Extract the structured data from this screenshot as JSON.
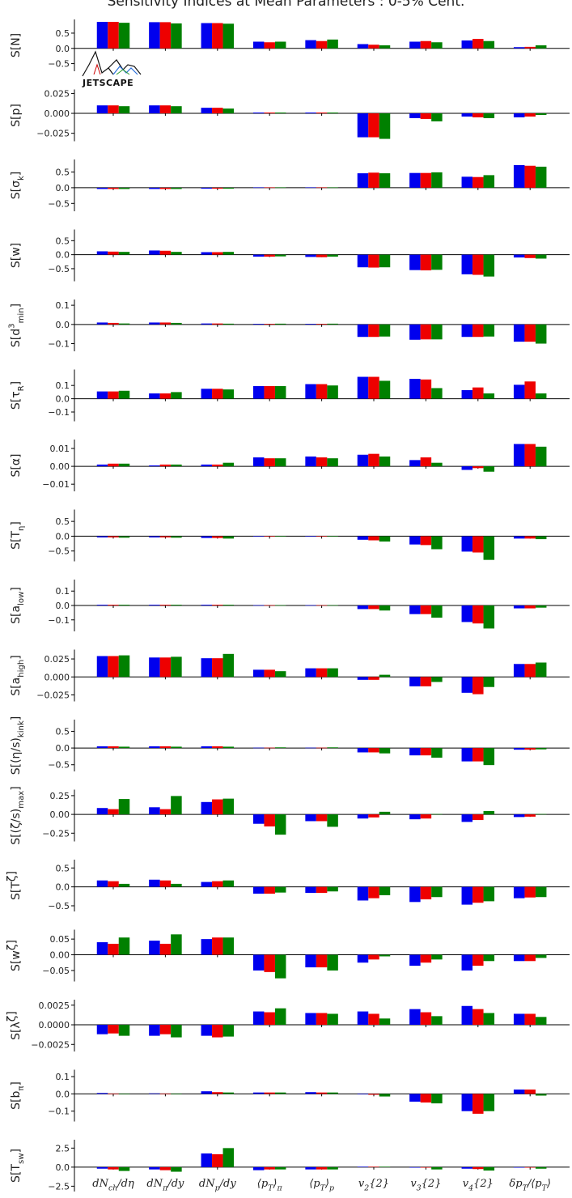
{
  "title": "Sensitivity Indices at Mean Parameters : 0-5% Cent.",
  "logo_text": "JETSCAPE",
  "colors": {
    "series1": "#0000ee",
    "series2": "#ee0000",
    "series3": "#008000",
    "axis": "#000000"
  },
  "chart_data": {
    "type": "bar",
    "categories": [
      "dN_{ch}/dη",
      "dN_π/dy",
      "dN_p/dy",
      "⟨p_T⟩_π",
      "⟨p_T⟩_p",
      "v_2{2}",
      "v_3{2}",
      "v_4{2}",
      "δp_T/⟨p_T⟩"
    ],
    "category_labels": [
      "dNch/dη",
      "dNπ/dy",
      "dNp/dy",
      "⟨pT⟩π",
      "⟨pT⟩p",
      "v2{2}",
      "v3{2}",
      "v4{2}",
      "δpT/⟨pT⟩"
    ],
    "panels": [
      {
        "ylabel": "S[N]",
        "ylim": [
          -0.75,
          0.95
        ],
        "yticks": [
          0.5,
          0.0,
          -0.5
        ],
        "ytick_labels": [
          "0.5",
          "0.0",
          "−0.5"
        ],
        "series": [
          [
            0.87,
            0.86,
            0.83,
            0.22,
            0.27,
            0.14,
            0.22,
            0.26,
            0.04
          ],
          [
            0.87,
            0.86,
            0.83,
            0.2,
            0.24,
            0.12,
            0.24,
            0.31,
            0.05
          ],
          [
            0.84,
            0.82,
            0.81,
            0.22,
            0.29,
            0.1,
            0.2,
            0.24,
            0.1
          ]
        ]
      },
      {
        "ylabel": "S[p]",
        "ylim": [
          -0.035,
          0.03
        ],
        "yticks": [
          0.025,
          0.0,
          -0.025
        ],
        "ytick_labels": [
          "0.025",
          "0.000",
          "−0.025"
        ],
        "series": [
          [
            0.01,
            0.01,
            0.007,
            0.001,
            0.001,
            -0.03,
            -0.006,
            -0.004,
            -0.005
          ],
          [
            0.01,
            0.01,
            0.007,
            0.001,
            0.001,
            -0.03,
            -0.007,
            -0.005,
            -0.004
          ],
          [
            0.009,
            0.009,
            0.006,
            0.001,
            0.001,
            -0.032,
            -0.01,
            -0.006,
            -0.002
          ]
        ]
      },
      {
        "ylabel": "S[σ_k]",
        "ylim": [
          -0.75,
          0.9
        ],
        "yticks": [
          0.5,
          0.0,
          -0.5
        ],
        "ytick_labels": [
          "0.5",
          "0.0",
          "−0.5"
        ],
        "series": [
          [
            -0.04,
            -0.04,
            -0.03,
            0.01,
            0.01,
            0.46,
            0.47,
            0.35,
            0.72
          ],
          [
            -0.04,
            -0.04,
            -0.03,
            0.01,
            0.01,
            0.48,
            0.47,
            0.34,
            0.7
          ],
          [
            -0.04,
            -0.04,
            -0.03,
            0.01,
            0.01,
            0.46,
            0.49,
            0.4,
            0.67
          ]
        ]
      },
      {
        "ylabel": "S[w]",
        "ylim": [
          -0.95,
          0.9
        ],
        "yticks": [
          0.5,
          0.0,
          -0.5
        ],
        "ytick_labels": [
          "0.5",
          "0.0",
          "−0.5"
        ],
        "series": [
          [
            0.12,
            0.15,
            0.09,
            -0.07,
            -0.08,
            -0.45,
            -0.55,
            -0.7,
            -0.1
          ],
          [
            0.11,
            0.14,
            0.09,
            -0.07,
            -0.09,
            -0.46,
            -0.56,
            -0.72,
            -0.12
          ],
          [
            0.1,
            0.1,
            0.1,
            -0.06,
            -0.07,
            -0.45,
            -0.54,
            -0.78,
            -0.14
          ]
        ]
      },
      {
        "ylabel": "S[d^3_min]",
        "ylim": [
          -0.14,
          0.13
        ],
        "yticks": [
          0.1,
          0.0,
          -0.1
        ],
        "ytick_labels": [
          "0.1",
          "0.0",
          "−0.1"
        ],
        "series": [
          [
            0.01,
            0.01,
            0.005,
            0.003,
            0.003,
            -0.065,
            -0.08,
            -0.065,
            -0.09
          ],
          [
            0.008,
            0.01,
            0.005,
            0.003,
            0.003,
            -0.065,
            -0.078,
            -0.065,
            -0.09
          ],
          [
            0.005,
            0.008,
            0.004,
            0.004,
            0.004,
            -0.063,
            -0.078,
            -0.063,
            -0.1
          ]
        ]
      },
      {
        "ylabel": "S[τ_R]",
        "ylim": [
          -0.17,
          0.22
        ],
        "yticks": [
          0.1,
          0.0,
          -0.1
        ],
        "ytick_labels": [
          "0.1",
          "0.0",
          "−0.1"
        ],
        "series": [
          [
            0.055,
            0.04,
            0.075,
            0.095,
            0.11,
            0.165,
            0.15,
            0.065,
            0.105
          ],
          [
            0.055,
            0.04,
            0.075,
            0.095,
            0.11,
            0.165,
            0.145,
            0.085,
            0.13
          ],
          [
            0.06,
            0.05,
            0.07,
            0.095,
            0.1,
            0.135,
            0.08,
            0.04,
            0.04
          ]
        ]
      },
      {
        "ylabel": "S[α]",
        "ylim": [
          -0.014,
          0.015
        ],
        "yticks": [
          0.01,
          0.0,
          -0.01
        ],
        "ytick_labels": [
          "0.01",
          "0.00",
          "−0.01"
        ],
        "series": [
          [
            0.001,
            0.0005,
            0.001,
            0.005,
            0.0055,
            0.0065,
            0.0035,
            -0.002,
            0.0125
          ],
          [
            0.0015,
            0.001,
            0.001,
            0.0045,
            0.005,
            0.007,
            0.005,
            -0.001,
            0.0125
          ],
          [
            0.0015,
            0.001,
            0.002,
            0.0045,
            0.0045,
            0.0055,
            0.002,
            -0.003,
            0.011
          ]
        ]
      },
      {
        "ylabel": "S[T_η]",
        "ylim": [
          -0.85,
          0.9
        ],
        "yticks": [
          0.5,
          0.0,
          -0.5
        ],
        "ytick_labels": [
          "0.5",
          "0.0",
          "−0.5"
        ],
        "series": [
          [
            -0.04,
            -0.04,
            -0.06,
            0.01,
            0.01,
            -0.12,
            -0.28,
            -0.52,
            -0.08
          ],
          [
            -0.04,
            -0.04,
            -0.06,
            0.01,
            0.01,
            -0.14,
            -0.3,
            -0.55,
            -0.08
          ],
          [
            -0.05,
            -0.05,
            -0.08,
            0.01,
            0.01,
            -0.18,
            -0.44,
            -0.8,
            -0.1
          ]
        ]
      },
      {
        "ylabel": "S[a_low]",
        "ylim": [
          -0.18,
          0.18
        ],
        "yticks": [
          0.1,
          0.0,
          -0.1
        ],
        "ytick_labels": [
          "0.1",
          "0.0",
          "−0.1"
        ],
        "series": [
          [
            0.005,
            0.005,
            0.005,
            0.002,
            0.002,
            -0.025,
            -0.06,
            -0.115,
            -0.02
          ],
          [
            0.005,
            0.005,
            0.005,
            0.002,
            0.002,
            -0.025,
            -0.06,
            -0.125,
            -0.02
          ],
          [
            0.005,
            0.005,
            0.005,
            0.002,
            0.002,
            -0.035,
            -0.085,
            -0.16,
            -0.015
          ]
        ]
      },
      {
        "ylabel": "S[a_high]",
        "ylim": [
          -0.034,
          0.038
        ],
        "yticks": [
          0.025,
          0.0,
          -0.025
        ],
        "ytick_labels": [
          "0.025",
          "0.000",
          "−0.025"
        ],
        "series": [
          [
            0.029,
            0.027,
            0.026,
            0.01,
            0.012,
            -0.004,
            -0.013,
            -0.022,
            0.018
          ],
          [
            0.029,
            0.027,
            0.026,
            0.01,
            0.012,
            -0.004,
            -0.013,
            -0.024,
            0.018
          ],
          [
            0.03,
            0.028,
            0.032,
            0.008,
            0.012,
            0.003,
            -0.007,
            -0.014,
            0.02
          ]
        ]
      },
      {
        "ylabel": "S[(η/s)_kink]",
        "ylim": [
          -0.7,
          0.85
        ],
        "yticks": [
          0.5,
          0.0,
          -0.5
        ],
        "ytick_labels": [
          "0.5",
          "0.0",
          "−0.5"
        ],
        "series": [
          [
            0.05,
            0.05,
            0.05,
            0.01,
            0.01,
            -0.13,
            -0.22,
            -0.4,
            -0.05
          ],
          [
            0.05,
            0.05,
            0.05,
            0.01,
            0.01,
            -0.13,
            -0.22,
            -0.4,
            -0.05
          ],
          [
            0.04,
            0.04,
            0.04,
            0.02,
            0.02,
            -0.16,
            -0.29,
            -0.51,
            -0.04
          ]
        ]
      },
      {
        "ylabel": "S[(ζ/s)_max]",
        "ylim": [
          -0.36,
          0.33
        ],
        "yticks": [
          0.25,
          0.0,
          -0.25
        ],
        "ytick_labels": [
          "0.25",
          "0.00",
          "−0.25"
        ],
        "series": [
          [
            0.085,
            0.095,
            0.165,
            -0.125,
            -0.09,
            -0.055,
            -0.065,
            -0.1,
            -0.035
          ],
          [
            0.07,
            0.07,
            0.2,
            -0.16,
            -0.09,
            -0.04,
            -0.055,
            -0.075,
            -0.03
          ],
          [
            0.205,
            0.245,
            0.21,
            -0.27,
            -0.165,
            0.035,
            0.005,
            0.045,
            0.005
          ]
        ]
      },
      {
        "ylabel": "S[T_ζ]",
        "ylim": [
          -0.65,
          0.72
        ],
        "yticks": [
          0.5,
          0.0,
          -0.5
        ],
        "ytick_labels": [
          "0.5",
          "0.0",
          "−0.5"
        ],
        "series": [
          [
            0.17,
            0.19,
            0.13,
            -0.18,
            -0.16,
            -0.36,
            -0.4,
            -0.47,
            -0.3
          ],
          [
            0.15,
            0.17,
            0.15,
            -0.18,
            -0.16,
            -0.3,
            -0.33,
            -0.42,
            -0.28
          ],
          [
            0.08,
            0.08,
            0.17,
            -0.15,
            -0.12,
            -0.22,
            -0.27,
            -0.38,
            -0.27
          ]
        ]
      },
      {
        "ylabel": "S[w_ζ]",
        "ylim": [
          -0.085,
          0.08
        ],
        "yticks": [
          0.05,
          0.0,
          -0.05
        ],
        "ytick_labels": [
          "0.05",
          "0.00",
          "−0.05"
        ],
        "series": [
          [
            0.04,
            0.045,
            0.05,
            -0.05,
            -0.04,
            -0.025,
            -0.035,
            -0.05,
            -0.02
          ],
          [
            0.035,
            0.035,
            0.055,
            -0.055,
            -0.04,
            -0.015,
            -0.025,
            -0.035,
            -0.02
          ],
          [
            0.055,
            0.065,
            0.055,
            -0.075,
            -0.05,
            -0.005,
            -0.015,
            -0.02,
            -0.01
          ]
        ]
      },
      {
        "ylabel": "S[λ_ζ]",
        "ylim": [
          -0.0034,
          0.0032
        ],
        "yticks": [
          0.0025,
          0.0,
          -0.0025
        ],
        "ytick_labels": [
          "0.0025",
          "0.0000",
          "−0.0025"
        ],
        "series": [
          [
            -0.0012,
            -0.0014,
            -0.0014,
            0.0017,
            0.0015,
            0.0017,
            0.002,
            0.0024,
            0.0014
          ],
          [
            -0.0011,
            -0.0012,
            -0.0016,
            0.0016,
            0.0015,
            0.0014,
            0.0016,
            0.002,
            0.0014
          ],
          [
            -0.0014,
            -0.0016,
            -0.0015,
            0.0021,
            0.0014,
            0.0008,
            0.0011,
            0.0015,
            0.001
          ]
        ]
      },
      {
        "ylabel": "S[b_π]",
        "ylim": [
          -0.16,
          0.14
        ],
        "yticks": [
          0.1,
          0.0,
          -0.1
        ],
        "ytick_labels": [
          "0.1",
          "0.0",
          "−0.1"
        ],
        "series": [
          [
            0.005,
            0.003,
            0.015,
            0.008,
            0.01,
            -0.003,
            -0.045,
            -0.1,
            0.025
          ],
          [
            0.002,
            0.002,
            0.01,
            0.008,
            0.008,
            -0.005,
            -0.05,
            -0.115,
            0.025
          ],
          [
            -0.002,
            0.0,
            0.008,
            0.008,
            0.008,
            -0.015,
            -0.055,
            -0.1,
            -0.01
          ]
        ]
      },
      {
        "ylabel": "S[T_sw]",
        "ylim": [
          -3.2,
          3.6
        ],
        "yticks": [
          2.5,
          0.0,
          -2.5
        ],
        "ytick_labels": [
          "2.5",
          "0.0",
          "−2.5"
        ],
        "series": [
          [
            -0.2,
            -0.3,
            1.8,
            -0.4,
            -0.3,
            0.05,
            -0.05,
            -0.2,
            -0.05
          ],
          [
            -0.3,
            -0.4,
            1.7,
            -0.3,
            -0.3,
            0.05,
            -0.05,
            -0.25,
            -0.05
          ],
          [
            -0.5,
            -0.6,
            2.5,
            -0.3,
            -0.3,
            0.05,
            -0.3,
            -0.45,
            -0.2
          ]
        ]
      }
    ]
  }
}
